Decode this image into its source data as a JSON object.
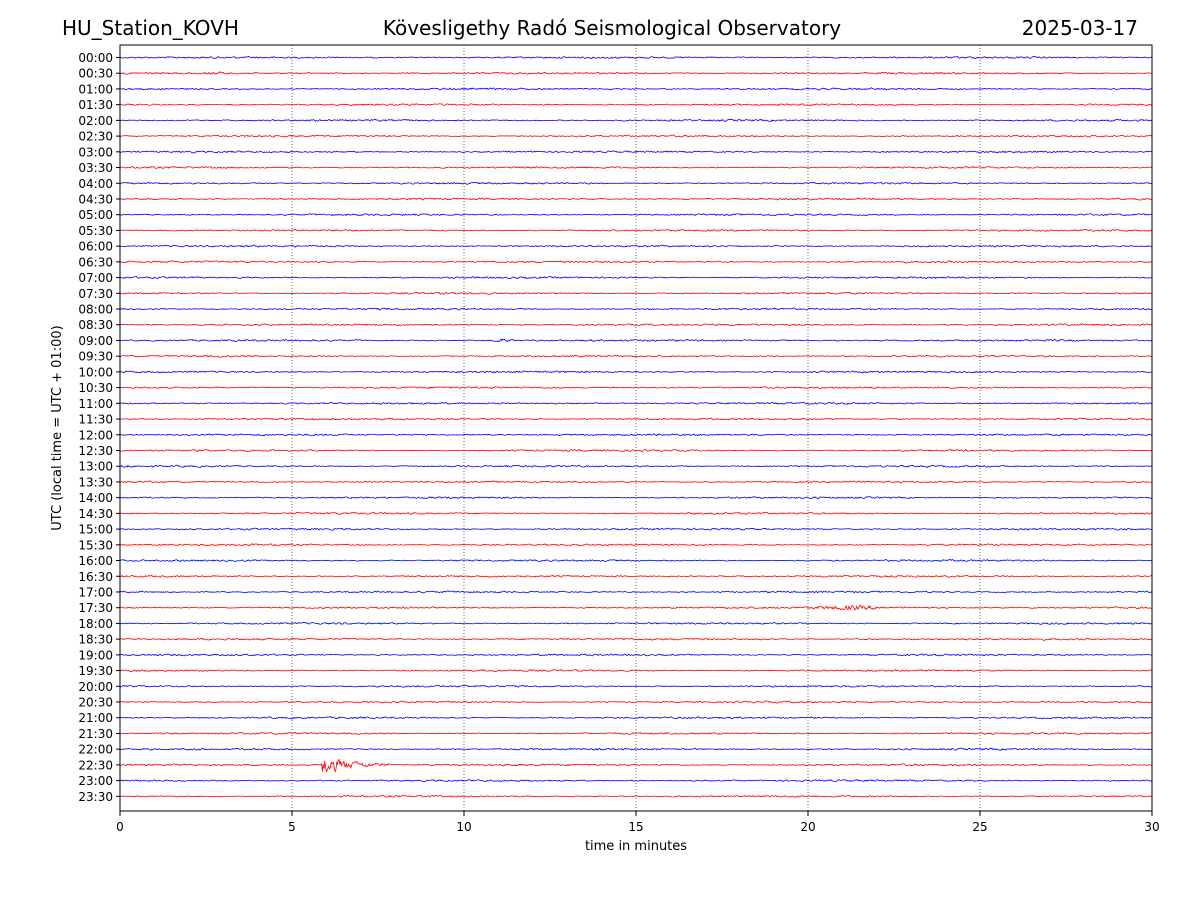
{
  "header": {
    "station": "HU_Station_KOVH",
    "title": "Kövesligethy Radó Seismological Observatory",
    "date": "2025-03-17"
  },
  "chart_data": {
    "type": "line",
    "title": "Kövesligethy Radó Seismological Observatory",
    "xlabel": "time in minutes",
    "ylabel": "UTC (local time = UTC + 01:00)",
    "xlim": [
      0,
      30
    ],
    "xticks": [
      "0",
      "5",
      "10",
      "15",
      "20",
      "25",
      "30"
    ],
    "xtick_values": [
      0,
      5,
      10,
      15,
      20,
      25,
      30
    ],
    "grid": "vertical dotted at each x tick",
    "series_colors": [
      "#0000ff",
      "#ff0000"
    ],
    "rows": [
      "00:00",
      "00:30",
      "01:00",
      "01:30",
      "02:00",
      "02:30",
      "03:00",
      "03:30",
      "04:00",
      "04:30",
      "05:00",
      "05:30",
      "06:00",
      "06:30",
      "07:00",
      "07:30",
      "08:00",
      "08:30",
      "09:00",
      "09:30",
      "10:00",
      "10:30",
      "11:00",
      "11:30",
      "12:00",
      "12:30",
      "13:00",
      "13:30",
      "14:00",
      "14:30",
      "15:00",
      "15:30",
      "16:00",
      "16:30",
      "17:00",
      "17:30",
      "18:00",
      "18:30",
      "19:00",
      "19:30",
      "20:00",
      "20:30",
      "21:00",
      "21:30",
      "22:00",
      "22:30",
      "23:00",
      "23:30"
    ],
    "events": [
      {
        "row": "00:30",
        "start": 2.2,
        "end": 3.3,
        "amplitude": 2.2,
        "kind": "noise"
      },
      {
        "row": "09:00",
        "start": 10.7,
        "end": 11.5,
        "amplitude": 2.5,
        "kind": "noise"
      },
      {
        "row": "13:00",
        "start": 0.0,
        "end": 0.4,
        "amplitude": 2.5,
        "kind": "noise"
      },
      {
        "row": "17:30",
        "start": 16.5,
        "end": 24.5,
        "amplitude": 1.6,
        "kind": "noise"
      },
      {
        "row": "17:30",
        "start": 20.1,
        "end": 22.3,
        "amplitude": 4.0,
        "kind": "noise"
      },
      {
        "row": "22:30",
        "start": 5.85,
        "end": 7.8,
        "amplitude": 15.0,
        "kind": "quake"
      }
    ]
  }
}
